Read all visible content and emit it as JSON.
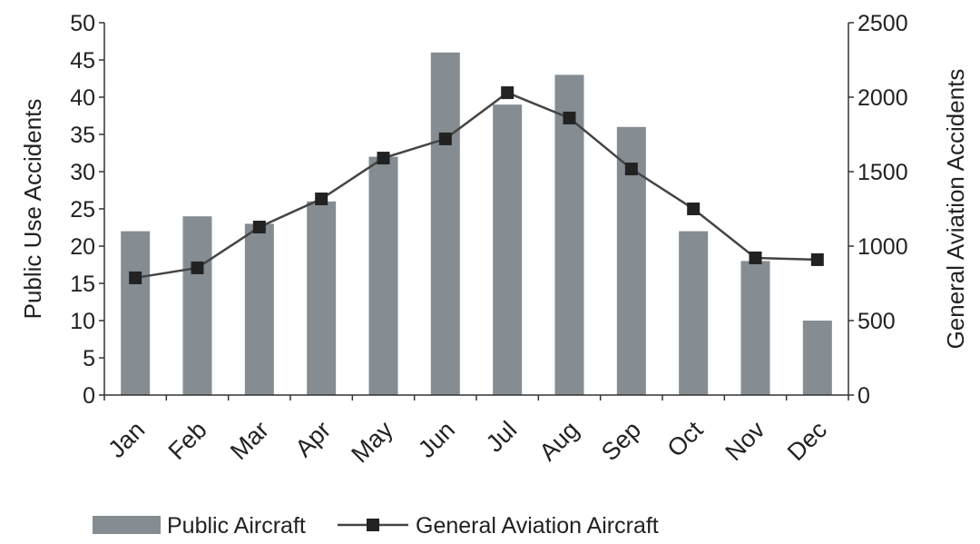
{
  "chart_data": {
    "type": "bar_line",
    "categories": [
      "Jan",
      "Feb",
      "Mar",
      "Apr",
      "May",
      "Jun",
      "Jul",
      "Aug",
      "Sep",
      "Oct",
      "Nov",
      "Dec"
    ],
    "series": [
      {
        "name": "Public Aircraft",
        "type": "bar",
        "color": "#858c92",
        "values": [
          22,
          24,
          23,
          26,
          32,
          46,
          39,
          43,
          36,
          22,
          18,
          10
        ]
      },
      {
        "name": "General Aviation Aircraft",
        "type": "line",
        "axis": "y2",
        "color": "#222222",
        "values": [
          787,
          854,
          1128,
          1317,
          1591,
          1720,
          2030,
          1860,
          1518,
          1250,
          921,
          909
        ]
      }
    ],
    "y_label": "Public Use Accidents",
    "y2_label": "General Aviation Accidents",
    "ylim": [
      0,
      50
    ],
    "yticks": [
      0,
      5,
      10,
      15,
      20,
      25,
      30,
      35,
      40,
      45,
      50
    ],
    "y2lim": [
      0,
      2500
    ],
    "y2ticks": [
      0,
      500,
      1000,
      1500,
      2000,
      2500
    ]
  }
}
